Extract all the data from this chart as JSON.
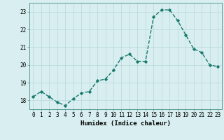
{
  "x": [
    0,
    1,
    2,
    3,
    4,
    5,
    6,
    7,
    8,
    9,
    10,
    11,
    12,
    13,
    14,
    15,
    16,
    17,
    18,
    19,
    20,
    21,
    22,
    23
  ],
  "y": [
    18.2,
    18.5,
    18.2,
    17.9,
    17.7,
    18.1,
    18.4,
    18.5,
    19.1,
    19.2,
    19.7,
    20.4,
    20.6,
    20.2,
    20.2,
    22.7,
    23.1,
    23.1,
    22.5,
    21.7,
    20.9,
    20.7,
    20.0,
    19.9
  ],
  "line_color": "#1a7a6e",
  "marker": "D",
  "marker_size": 1.8,
  "line_width": 1.0,
  "bg_color": "#d8eef0",
  "grid_color": "#b8d8da",
  "xlabel": "Humidex (Indice chaleur)",
  "ylim": [
    17.5,
    23.5
  ],
  "yticks": [
    18,
    19,
    20,
    21,
    22,
    23
  ],
  "xticks": [
    0,
    1,
    2,
    3,
    4,
    5,
    6,
    7,
    8,
    9,
    10,
    11,
    12,
    13,
    14,
    15,
    16,
    17,
    18,
    19,
    20,
    21,
    22,
    23
  ],
  "xlabel_fontsize": 6.5,
  "tick_fontsize": 5.5
}
